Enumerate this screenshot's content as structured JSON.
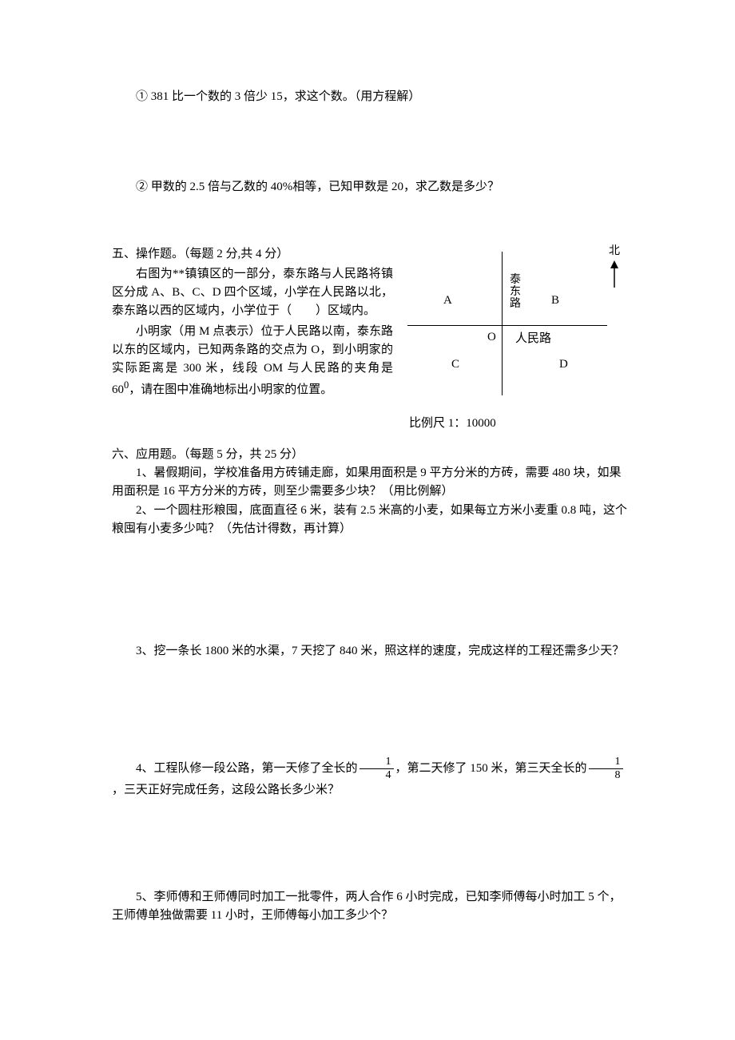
{
  "q4_1": "① 381 比一个数的 3 倍少 15，求这个数。（用方程解）",
  "q4_2": "② 甲数的 2.5 倍与乙数的 40%相等，已知甲数是 20，求乙数是多少？",
  "sec5": {
    "title": "五、操作题。（每题 2 分,共 4 分）",
    "p1": "右图为**镇镇区的一部分，泰东路与人民路将镇区分成 A、B、C、D 四个区域，小学在人民路以北，泰东路以西的区域内，小学位于（　　）区域内。",
    "p2a": "小明家（用 M 点表示）位于人民路以南，泰东路以东的区域内，已知两条路的交点为 O，到小明家的实际距离是 300 米，线段 OM 与人民路的夹角是 60",
    "p2b": "，请在图中准确地标出小明家的位置。",
    "degree_sup": "0",
    "compass": "北",
    "A": "A",
    "B": "B",
    "C": "C",
    "D": "D",
    "O": "O",
    "road_v": "泰东路",
    "road_h": "人民路",
    "scale": "比例尺  1：10000"
  },
  "sec6": {
    "title": "六、应用题。（每题 5 分，共 25 分）",
    "q1": "1、暑假期间，学校准备用方砖铺走廊，如果用面积是 9 平方分米的方砖，需要 480 块，如果用面积是 16 平方分米的方砖，则至少需要多少块？（用比例解）",
    "q2": "2、一个圆柱形粮囤，底面直径 6 米，装有 2.5 米高的小麦，如果每立方米小麦重 0.8 吨，这个粮囤有小麦多少吨？（先估计得数，再计算）",
    "q3": "3、挖一条长 1800 米的水渠，7 天挖了 840 米，照这样的速度，完成这样的工程还需多少天？",
    "q4_pre": "4、工程队修一段公路，第一天修了全长的",
    "q4_mid": "，第二天修了 150 米，第三天全长的",
    "q4_post": "，三天正好完成任务，这段公路长多少米？",
    "frac1_num": "1",
    "frac1_den": "4",
    "frac2_num": "1",
    "frac2_den": "8",
    "q5": "5、李师傅和王师傅同时加工一批零件，两人合作 6 小时完成，已知李师傅每小时加工 5 个，王师傅单独做需要 11 小时，王师傅每小加工多少个？"
  }
}
